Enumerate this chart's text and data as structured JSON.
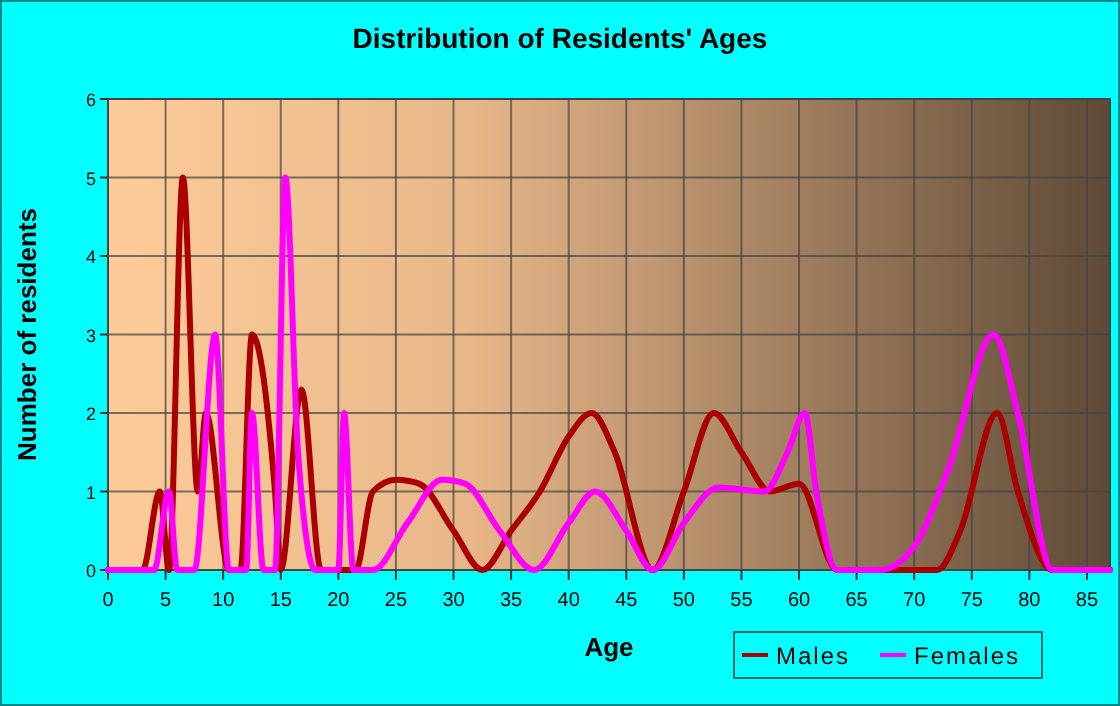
{
  "chart_data": {
    "type": "line",
    "title": "Distribution of Residents' Ages",
    "xlabel": "Age",
    "ylabel": "Number of residents",
    "xlim": [
      0,
      87
    ],
    "xticks": [
      0,
      5,
      10,
      15,
      20,
      25,
      30,
      35,
      40,
      45,
      50,
      55,
      60,
      65,
      70,
      75,
      80,
      85
    ],
    "ylim": [
      0,
      6
    ],
    "yticks": [
      0,
      1,
      2,
      3,
      4,
      5,
      6
    ],
    "grid": true,
    "legend": "bottom right",
    "marker": "none",
    "line_style": "solid",
    "series": [
      {
        "name": "Males",
        "color": "#aa0000",
        "x": [
          0,
          3,
          4.5,
          5.3,
          6.5,
          7.8,
          8.5,
          10.5,
          11.5,
          12.5,
          14.5,
          15,
          16.8,
          18.5,
          20,
          21.5,
          23,
          25,
          27,
          30,
          32.5,
          35,
          37.5,
          40,
          42,
          44,
          47.3,
          50,
          52.6,
          55,
          57.5,
          60,
          63.3,
          65,
          72,
          74,
          77.2,
          79,
          82,
          87
        ],
        "values": [
          0,
          0,
          1,
          0,
          5,
          1,
          2,
          0,
          0,
          3,
          1,
          0,
          2.3,
          0,
          0,
          0,
          1,
          1.15,
          1.1,
          0.5,
          0,
          0.5,
          1,
          1.7,
          2,
          1.5,
          0,
          1,
          2,
          1.5,
          1,
          1.1,
          0,
          0,
          0,
          0.5,
          2,
          1,
          0,
          0
        ]
      },
      {
        "name": "Females",
        "color": "#ff00ff",
        "x": [
          0,
          4,
          5.3,
          6,
          7.5,
          9.3,
          10.5,
          12,
          12.5,
          13.5,
          14.5,
          15.4,
          16.5,
          18,
          20,
          20.5,
          21.3,
          23,
          26,
          29,
          31,
          34,
          37,
          40,
          42.3,
          45,
          47.3,
          50,
          53,
          57,
          59,
          60.5,
          61.5,
          63.3,
          67,
          70,
          73,
          76.9,
          79,
          82,
          87
        ],
        "values": [
          0,
          0,
          1,
          0,
          0,
          3,
          0,
          0,
          2,
          0,
          0,
          5,
          1.5,
          0,
          0,
          2,
          0,
          0,
          0.6,
          1.15,
          1.1,
          0.5,
          0,
          0.6,
          1,
          0.5,
          0,
          0.6,
          1.05,
          1,
          1.5,
          2,
          1,
          0,
          0,
          0.3,
          1.3,
          3,
          2,
          0,
          0
        ]
      }
    ]
  }
}
